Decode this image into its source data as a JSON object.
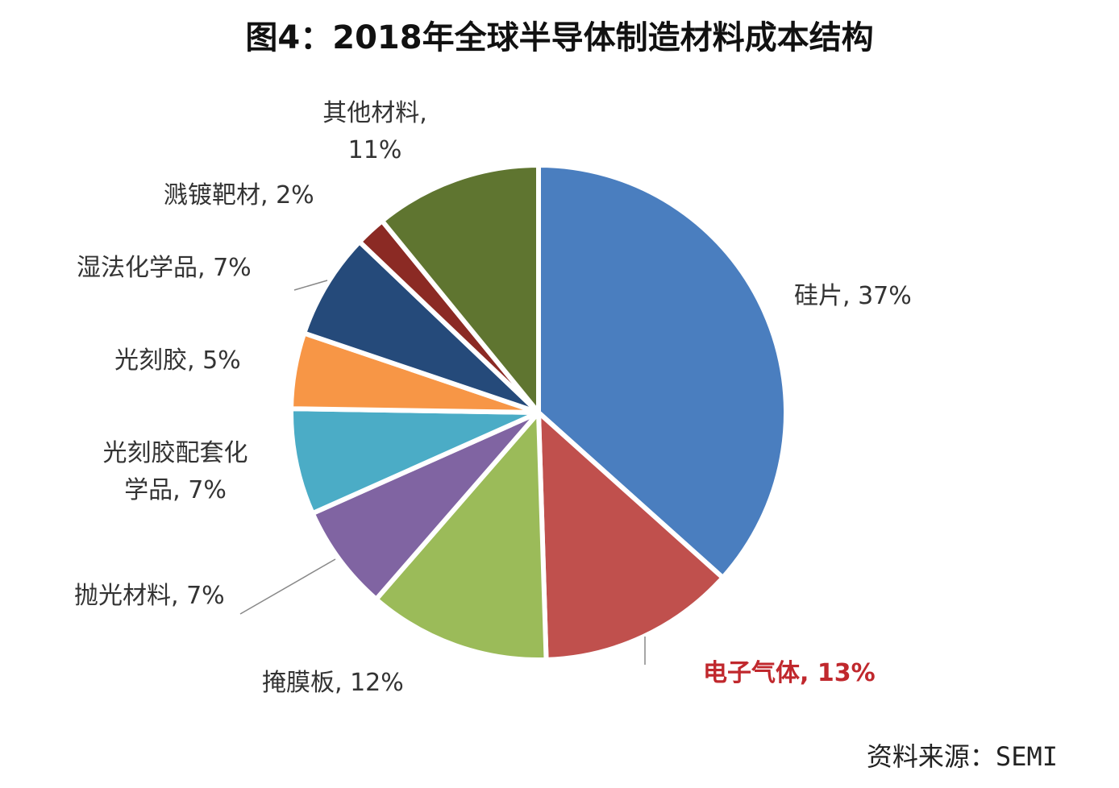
{
  "chart_data": {
    "type": "pie",
    "title": "图4：2018年全球半导体制造材料成本结构",
    "start": "12 o'clock, clockwise",
    "slices": [
      {
        "name": "硅片",
        "value": 37,
        "label": "硅片, 37%",
        "color": "#4a7ebf"
      },
      {
        "name": "电子气体",
        "value": 13,
        "label": "电子气体, 13%",
        "color": "#c0504d"
      },
      {
        "name": "掩膜板",
        "value": 12,
        "label": "掩膜板, 12%",
        "color": "#9bbb59"
      },
      {
        "name": "抛光材料",
        "value": 7,
        "label": "抛光材料, 7%",
        "color": "#8064a2"
      },
      {
        "name": "光刻胶配套化学品",
        "value": 7,
        "label_line1": "光刻胶配套化",
        "label_line2": "学品, 7%",
        "color": "#4bacc6"
      },
      {
        "name": "光刻胶",
        "value": 5,
        "label": "光刻胶, 5%",
        "color": "#f79646"
      },
      {
        "name": "湿法化学品",
        "value": 7,
        "label": "湿法化学品, 7%",
        "color": "#254a7a"
      },
      {
        "name": "溅镀靶材",
        "value": 2,
        "label": "溅镀靶材, 2%",
        "color": "#8b2a24"
      },
      {
        "name": "其他材料",
        "value": 11,
        "label_line1": "其他材料,",
        "label_line2": "11%",
        "color": "#5f7530"
      }
    ],
    "highlight_color": "#c0282d",
    "source": "资料来源：SEMI"
  }
}
